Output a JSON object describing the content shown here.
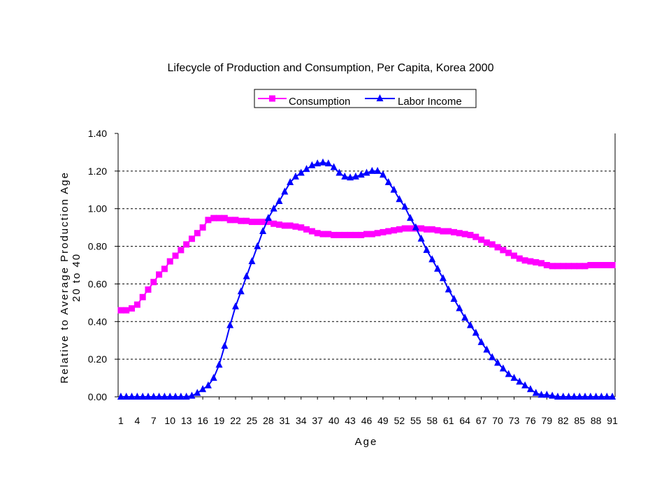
{
  "chart_data": {
    "type": "line",
    "title": "Lifecycle of Production and Consumption, Per Capita, Korea 2000",
    "xlabel": "Age",
    "ylabel": "Relative to  Average Production Age\n20 to  40",
    "ylim": [
      0,
      1.4
    ],
    "yticks": [
      "0.00",
      "0.20",
      "0.40",
      "0.60",
      "0.80",
      "1.00",
      "1.20",
      "1.40"
    ],
    "xtick_labels": [
      "1",
      "4",
      "7",
      "10",
      "13",
      "16",
      "19",
      "22",
      "25",
      "28",
      "31",
      "34",
      "37",
      "40",
      "43",
      "46",
      "49",
      "52",
      "55",
      "58",
      "61",
      "64",
      "67",
      "70",
      "73",
      "76",
      "79",
      "82",
      "85",
      "88",
      "91"
    ],
    "grid": "horizontal dashed",
    "legend_position": "top",
    "x": [
      1,
      2,
      3,
      4,
      5,
      6,
      7,
      8,
      9,
      10,
      11,
      12,
      13,
      14,
      15,
      16,
      17,
      18,
      19,
      20,
      21,
      22,
      23,
      24,
      25,
      26,
      27,
      28,
      29,
      30,
      31,
      32,
      33,
      34,
      35,
      36,
      37,
      38,
      39,
      40,
      41,
      42,
      43,
      44,
      45,
      46,
      47,
      48,
      49,
      50,
      51,
      52,
      53,
      54,
      55,
      56,
      57,
      58,
      59,
      60,
      61,
      62,
      63,
      64,
      65,
      66,
      67,
      68,
      69,
      70,
      71,
      72,
      73,
      74,
      75,
      76,
      77,
      78,
      79,
      80,
      81,
      82,
      83,
      84,
      85,
      86,
      87,
      88,
      89,
      90,
      91
    ],
    "series": [
      {
        "name": "Consumption",
        "color": "#ff00ff",
        "marker": "square",
        "values": [
          0.46,
          0.46,
          0.47,
          0.49,
          0.53,
          0.57,
          0.61,
          0.65,
          0.68,
          0.72,
          0.75,
          0.78,
          0.81,
          0.84,
          0.87,
          0.9,
          0.94,
          0.95,
          0.95,
          0.95,
          0.94,
          0.94,
          0.935,
          0.935,
          0.93,
          0.93,
          0.93,
          0.93,
          0.92,
          0.915,
          0.91,
          0.91,
          0.905,
          0.9,
          0.89,
          0.88,
          0.87,
          0.865,
          0.865,
          0.86,
          0.86,
          0.86,
          0.86,
          0.86,
          0.86,
          0.865,
          0.865,
          0.87,
          0.875,
          0.88,
          0.885,
          0.89,
          0.895,
          0.895,
          0.895,
          0.895,
          0.89,
          0.89,
          0.885,
          0.88,
          0.88,
          0.875,
          0.87,
          0.865,
          0.86,
          0.85,
          0.835,
          0.82,
          0.81,
          0.795,
          0.78,
          0.765,
          0.75,
          0.735,
          0.725,
          0.72,
          0.715,
          0.71,
          0.7,
          0.695,
          0.695,
          0.695,
          0.695,
          0.695,
          0.695,
          0.695,
          0.7,
          0.7,
          0.7,
          0.7,
          0.7
        ]
      },
      {
        "name": "Labor Income",
        "color": "#0000ff",
        "marker": "triangle",
        "values": [
          0,
          0,
          0,
          0,
          0,
          0,
          0,
          0,
          0,
          0,
          0,
          0,
          0,
          0.005,
          0.02,
          0.04,
          0.06,
          0.1,
          0.17,
          0.27,
          0.38,
          0.48,
          0.56,
          0.64,
          0.72,
          0.8,
          0.88,
          0.95,
          1.0,
          1.04,
          1.09,
          1.14,
          1.17,
          1.19,
          1.21,
          1.23,
          1.24,
          1.245,
          1.24,
          1.22,
          1.19,
          1.17,
          1.165,
          1.17,
          1.18,
          1.19,
          1.2,
          1.2,
          1.18,
          1.14,
          1.1,
          1.05,
          1.01,
          0.95,
          0.9,
          0.84,
          0.78,
          0.73,
          0.68,
          0.63,
          0.57,
          0.52,
          0.47,
          0.42,
          0.38,
          0.34,
          0.29,
          0.25,
          0.21,
          0.18,
          0.15,
          0.12,
          0.1,
          0.08,
          0.06,
          0.04,
          0.02,
          0.01,
          0.01,
          0.005,
          0,
          0,
          0,
          0,
          0,
          0,
          0,
          0,
          0,
          0,
          0
        ]
      }
    ]
  }
}
